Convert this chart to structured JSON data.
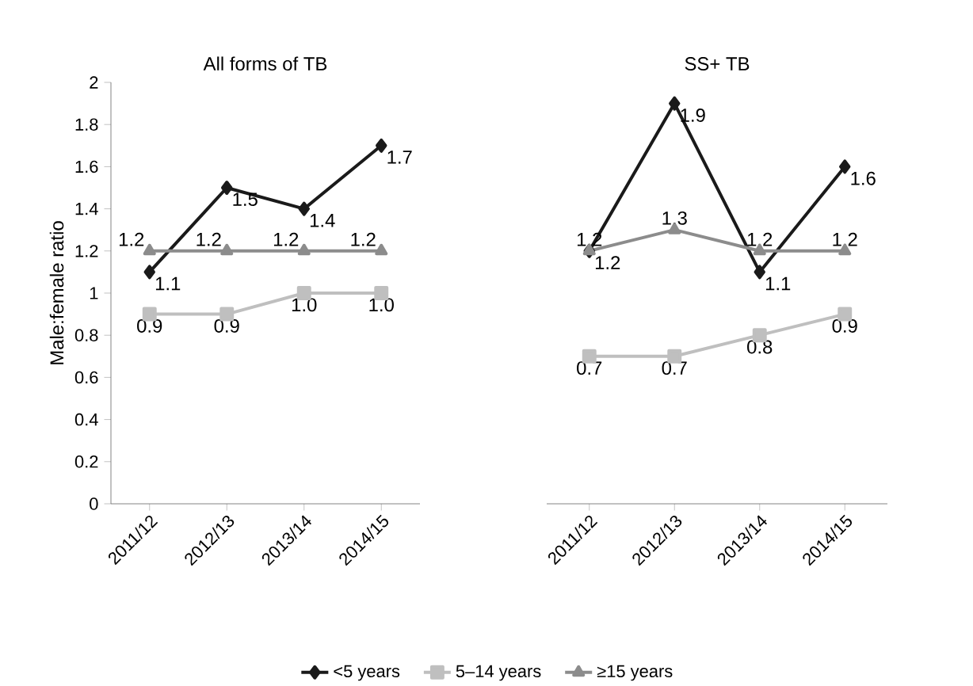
{
  "chart_data": [
    {
      "type": "line",
      "title": "All forms of TB",
      "ylabel": "Male:female ratio",
      "categories": [
        "2011/12",
        "2012/13",
        "2013/14",
        "2014/15"
      ],
      "ylim": [
        0,
        2
      ],
      "yticks": [
        0,
        0.2,
        0.4,
        0.6,
        0.8,
        1,
        1.2,
        1.4,
        1.6,
        1.8,
        2
      ],
      "legend": "bottom",
      "series": [
        {
          "name": "<5 years",
          "color": "#1a1a1a",
          "marker": "diamond",
          "values": [
            1.1,
            1.5,
            1.4,
            1.7
          ],
          "value_labels": [
            "1.1",
            "1.5",
            "1.4",
            "1.7"
          ]
        },
        {
          "name": "5–14 years",
          "color": "#bfbfbf",
          "marker": "square",
          "values": [
            0.9,
            0.9,
            1.0,
            1.0
          ],
          "value_labels": [
            "0.9",
            "0.9",
            "1.0",
            "1.0"
          ]
        },
        {
          "name": "≥15 years",
          "color": "#8c8c8c",
          "marker": "triangle",
          "values": [
            1.2,
            1.2,
            1.2,
            1.2
          ],
          "value_labels": [
            "1.2",
            "1.2",
            "1.2",
            "1.2"
          ]
        }
      ]
    },
    {
      "type": "line",
      "title": "SS+ TB",
      "categories": [
        "2011/12",
        "2012/13",
        "2013/14",
        "2014/15"
      ],
      "ylim": [
        0,
        2
      ],
      "tick_labels": "x",
      "series": [
        {
          "color": "#1a1a1a",
          "marker": "diamond",
          "values": [
            1.2,
            1.9,
            1.1,
            1.6
          ],
          "value_labels": [
            "1.2",
            "1.9",
            "1.1",
            "1.6"
          ]
        },
        {
          "color": "#bfbfbf",
          "marker": "square",
          "values": [
            0.7,
            0.7,
            0.8,
            0.9
          ],
          "value_labels": [
            "0.7",
            "0.7",
            "0.8",
            "0.9"
          ]
        },
        {
          "color": "#8c8c8c",
          "marker": "triangle",
          "values": [
            1.2,
            1.3,
            1.2,
            1.2
          ],
          "value_labels": [
            "1.2",
            "1.3",
            "1.2",
            "1.2"
          ]
        }
      ]
    }
  ]
}
